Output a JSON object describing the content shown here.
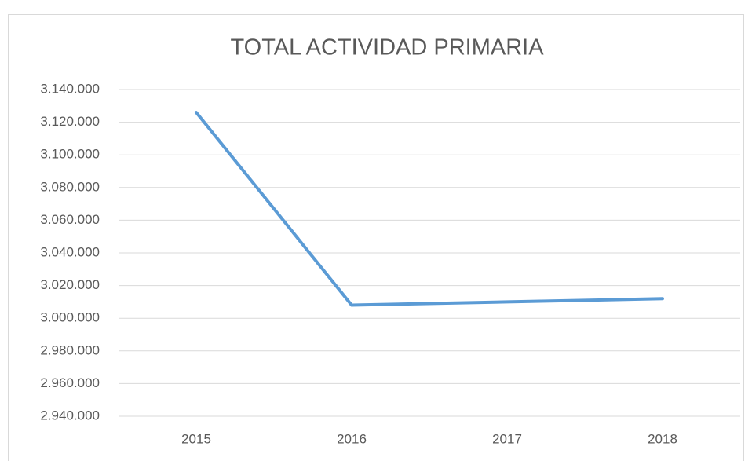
{
  "chart_data": {
    "type": "line",
    "title": "TOTAL ACTIVIDAD PRIMARIA",
    "categories": [
      "2015",
      "2016",
      "2017",
      "2018"
    ],
    "series": [
      {
        "name": "TOTAL ACTIVIDAD PRIMARIA",
        "color": "#5b9bd5",
        "values": [
          3126000,
          3008000,
          3010000,
          3012000
        ]
      }
    ],
    "ylim": [
      2940000,
      3140000
    ],
    "yticks": [
      {
        "value": 2940000,
        "label": "2.940.000"
      },
      {
        "value": 2960000,
        "label": "2.960.000"
      },
      {
        "value": 2980000,
        "label": "2.980.000"
      },
      {
        "value": 3000000,
        "label": "3.000.000"
      },
      {
        "value": 3020000,
        "label": "3.020.000"
      },
      {
        "value": 3040000,
        "label": "3.040.000"
      },
      {
        "value": 3060000,
        "label": "3.060.000"
      },
      {
        "value": 3080000,
        "label": "3.080.000"
      },
      {
        "value": 3100000,
        "label": "3.100.000"
      },
      {
        "value": 3120000,
        "label": "3.120.000"
      },
      {
        "value": 3140000,
        "label": "3.140.000"
      }
    ],
    "grid": true
  }
}
